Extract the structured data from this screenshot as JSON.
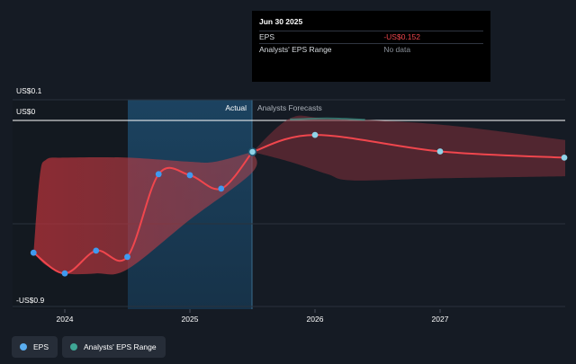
{
  "chart_data": {
    "type": "line",
    "y_axis_labels": [
      "US$0.1",
      "US$0",
      "-US$0.9"
    ],
    "x_ticks": [
      "2024",
      "2025",
      "2026",
      "2027"
    ],
    "region_labels": {
      "actual": "Actual",
      "forecast": "Analysts Forecasts"
    },
    "series": [
      {
        "name": "EPS",
        "color": "#f0464d",
        "actual": [
          {
            "x": 2023.75,
            "y": -0.64
          },
          {
            "x": 2024.0,
            "y": -0.74
          },
          {
            "x": 2024.25,
            "y": -0.63
          },
          {
            "x": 2024.5,
            "y": -0.66
          },
          {
            "x": 2024.75,
            "y": -0.26
          },
          {
            "x": 2025.0,
            "y": -0.265
          },
          {
            "x": 2025.25,
            "y": -0.33
          },
          {
            "x": 2025.5,
            "y": -0.152
          }
        ],
        "forecast": [
          {
            "x": 2025.5,
            "y": -0.152
          },
          {
            "x": 2026.0,
            "y": -0.07
          },
          {
            "x": 2027.0,
            "y": -0.15
          },
          {
            "x": 2028.0,
            "y": -0.18
          }
        ]
      }
    ],
    "range_series": {
      "name": "Analysts' EPS Range",
      "color": "#3fa796",
      "past_upper": [
        [
          2023.75,
          -0.64
        ],
        [
          2023.8,
          -0.27
        ],
        [
          2023.85,
          -0.19
        ],
        [
          2024.0,
          -0.18
        ],
        [
          2024.5,
          -0.18
        ],
        [
          2025.0,
          -0.2
        ],
        [
          2025.2,
          -0.2
        ],
        [
          2025.5,
          -0.152
        ]
      ],
      "past_lower": [
        [
          2023.75,
          -0.64
        ],
        [
          2023.85,
          -0.7
        ],
        [
          2024.0,
          -0.74
        ],
        [
          2024.25,
          -0.74
        ],
        [
          2024.5,
          -0.72
        ],
        [
          2025.0,
          -0.48
        ],
        [
          2025.5,
          -0.25
        ],
        [
          2025.5,
          -0.152
        ]
      ],
      "forecast_upper": [
        [
          2025.5,
          -0.152
        ],
        [
          2025.8,
          0.01
        ],
        [
          2026.1,
          0.01
        ],
        [
          2027.0,
          -0.02
        ],
        [
          2028.0,
          -0.095
        ]
      ],
      "forecast_lower": [
        [
          2025.5,
          -0.152
        ],
        [
          2025.8,
          -0.2
        ],
        [
          2026.1,
          -0.26
        ],
        [
          2026.3,
          -0.29
        ],
        [
          2027.0,
          -0.28
        ],
        [
          2028.0,
          -0.27
        ]
      ]
    }
  },
  "tooltip": {
    "title": "Jun 30 2025",
    "rows": [
      {
        "label": "EPS",
        "value": "-US$0.152",
        "value_color": "#f0464d"
      },
      {
        "label": "Analysts' EPS Range",
        "value": "No data",
        "value_color": "#8a9099"
      }
    ]
  },
  "legend": [
    {
      "label": "EPS",
      "color": "#5aaef0"
    },
    {
      "label": "Analysts' EPS Range",
      "color": "#3fa796"
    }
  ]
}
